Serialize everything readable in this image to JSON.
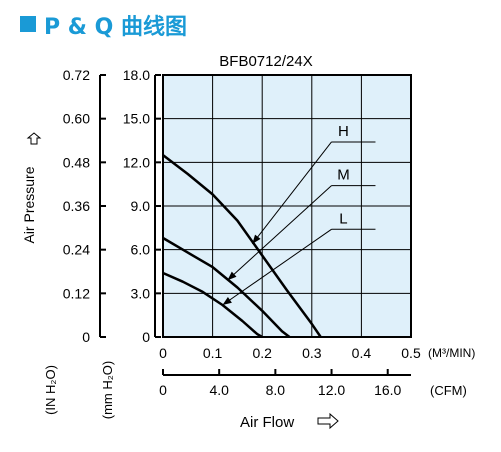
{
  "header": {
    "text": "P & Q 曲线图",
    "color": "#1a9ad6"
  },
  "chart_data": {
    "type": "line",
    "title": "BFB0712/24X",
    "xlabel": "Air Flow",
    "ylabel": "Air Pressure",
    "x_unit_metric": "(M³/MIN)",
    "x_unit_imperial": "(CFM)",
    "y_unit_inch": "(IN H₂O)",
    "y_unit_mm": "(mm H₂O)",
    "xlim": [
      0,
      0.5
    ],
    "ylim": [
      0,
      18
    ],
    "x_ticks_metric": [
      "0",
      "0.1",
      "0.2",
      "0.3",
      "0.4",
      "0.5"
    ],
    "x_ticks_imperial": [
      "0",
      "4.0",
      "8.0",
      "12.0",
      "16.0"
    ],
    "x_ticks_imperial_values": [
      0,
      4,
      8,
      12,
      16
    ],
    "y_ticks_mm": [
      "0",
      "3.0",
      "6.0",
      "9.0",
      "12.0",
      "15.0",
      "18.0"
    ],
    "y_ticks_inch": [
      "0",
      "0.12",
      "0.24",
      "0.36",
      "0.48",
      "0.60",
      "0.72"
    ],
    "grid": true,
    "plot_bg": "#dff0fa",
    "series": [
      {
        "name": "H",
        "x": [
          0,
          0.05,
          0.1,
          0.15,
          0.2,
          0.25,
          0.3,
          0.318
        ],
        "y": [
          12.5,
          11.2,
          9.8,
          8.0,
          5.6,
          3.2,
          0.9,
          0
        ]
      },
      {
        "name": "M",
        "x": [
          0,
          0.05,
          0.1,
          0.15,
          0.2,
          0.24,
          0.255
        ],
        "y": [
          6.8,
          5.8,
          4.8,
          3.4,
          1.8,
          0.4,
          0
        ]
      },
      {
        "name": "L",
        "x": [
          0,
          0.04,
          0.08,
          0.12,
          0.16,
          0.19,
          0.2
        ],
        "y": [
          4.4,
          3.8,
          3.1,
          2.2,
          1.1,
          0.2,
          0
        ]
      }
    ],
    "annotations": [
      {
        "label": "H",
        "x": 0.38,
        "y": 13.4,
        "target_x": 0.18,
        "target_y": 6.4
      },
      {
        "label": "M",
        "x": 0.38,
        "y": 10.4,
        "target_x": 0.13,
        "target_y": 3.9
      },
      {
        "label": "L",
        "x": 0.38,
        "y": 7.4,
        "target_x": 0.12,
        "target_y": 2.2
      }
    ]
  }
}
